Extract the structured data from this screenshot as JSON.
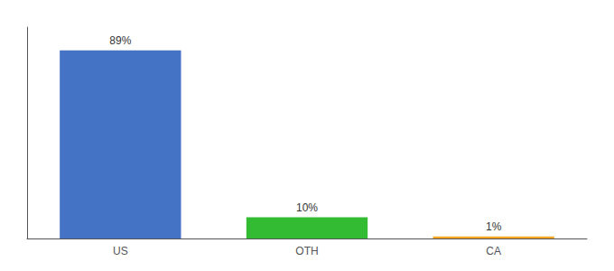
{
  "chart_data": {
    "type": "bar",
    "categories": [
      "US",
      "OTH",
      "CA"
    ],
    "values": [
      89,
      10,
      1
    ],
    "value_labels": [
      "89%",
      "10%",
      "1%"
    ],
    "colors": [
      "#4472c4",
      "#33bb33",
      "#f5a623"
    ],
    "ylim": [
      0,
      100
    ],
    "data_labels": true,
    "tick_labels": "x",
    "grid": false
  }
}
